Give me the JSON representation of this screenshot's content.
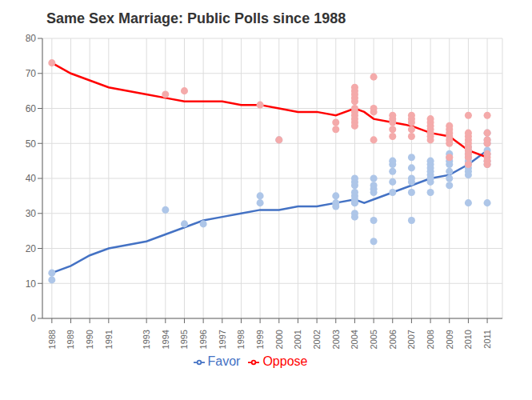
{
  "chart_data": {
    "type": "line",
    "title": "Same Sex Marriage: Public Polls since 1988",
    "xlim": [
      1987.5,
      2011.8
    ],
    "ylim": [
      0,
      80
    ],
    "xticks": [
      1988,
      1989,
      1990,
      1991,
      1993,
      1994,
      1995,
      1996,
      1997,
      1998,
      1999,
      2000,
      2001,
      2002,
      2003,
      2004,
      2005,
      2006,
      2007,
      2008,
      2009,
      2010,
      2011
    ],
    "yticks": [
      0,
      10,
      20,
      30,
      40,
      50,
      60,
      70,
      80
    ],
    "grid": true,
    "legend": "bottom",
    "series": [
      {
        "type": "scatter",
        "color": "#AEC6E8",
        "x": [
          1988,
          1988,
          1994,
          1995,
          1996,
          1999,
          1999,
          2000,
          2003,
          2003,
          2003,
          2004,
          2004,
          2004,
          2004,
          2004,
          2004,
          2004,
          2004,
          2004,
          2004,
          2005,
          2005,
          2005,
          2005,
          2005,
          2005,
          2006,
          2006,
          2006,
          2006,
          2006,
          2007,
          2007,
          2007,
          2007,
          2007,
          2007,
          2008,
          2008,
          2008,
          2008,
          2008,
          2008,
          2008,
          2008,
          2009,
          2009,
          2009,
          2009,
          2009,
          2009,
          2009,
          2010,
          2010,
          2010,
          2010,
          2010,
          2010,
          2010,
          2010,
          2010,
          2010,
          2011,
          2011,
          2011,
          2011,
          2011,
          2011,
          2011,
          2011
        ],
        "values": [
          11,
          13,
          31,
          27,
          27,
          35,
          33,
          51,
          32,
          33,
          35,
          29,
          30,
          33,
          33,
          34,
          35,
          36,
          38,
          39,
          40,
          22,
          28,
          36,
          37,
          38,
          40,
          36,
          39,
          42,
          44,
          45,
          28,
          36,
          39,
          40,
          43,
          46,
          36,
          39,
          40,
          41,
          42,
          43,
          44,
          45,
          38,
          40,
          42,
          44,
          45,
          46,
          47,
          33,
          41,
          42,
          43,
          44,
          45,
          46,
          47,
          48,
          49,
          33,
          44,
          45,
          47,
          48,
          50,
          51,
          53
        ]
      },
      {
        "type": "scatter",
        "color": "#F4AAAA",
        "x": [
          1988,
          1994,
          1995,
          1999,
          2000,
          2003,
          2003,
          2004,
          2004,
          2004,
          2004,
          2004,
          2004,
          2004,
          2004,
          2004,
          2004,
          2004,
          2005,
          2005,
          2005,
          2005,
          2006,
          2006,
          2006,
          2006,
          2006,
          2007,
          2007,
          2007,
          2007,
          2007,
          2008,
          2008,
          2008,
          2008,
          2008,
          2008,
          2008,
          2009,
          2009,
          2009,
          2009,
          2009,
          2009,
          2009,
          2010,
          2010,
          2010,
          2010,
          2010,
          2010,
          2010,
          2010,
          2010,
          2010,
          2011,
          2011,
          2011,
          2011,
          2011,
          2011,
          2011,
          2011
        ],
        "values": [
          73,
          64,
          65,
          61,
          51,
          54,
          56,
          55,
          56,
          57,
          58,
          59,
          60,
          62,
          63,
          64,
          65,
          66,
          51,
          59,
          60,
          69,
          52,
          54,
          56,
          57,
          58,
          52,
          54,
          56,
          57,
          58,
          51,
          52,
          53,
          54,
          55,
          56,
          57,
          46,
          50,
          51,
          52,
          53,
          54,
          55,
          44,
          46,
          47,
          48,
          49,
          50,
          51,
          52,
          53,
          58,
          44,
          45,
          46,
          47,
          50,
          51,
          53,
          58
        ]
      },
      {
        "type": "line",
        "name": "Favor",
        "color": "#4472C4",
        "x": [
          1988,
          1989,
          1990,
          1991,
          1993,
          1994,
          1995,
          1996,
          1997,
          1998,
          1999,
          2000,
          2001,
          2002,
          2003,
          2004,
          2004.5,
          2005,
          2006,
          2007,
          2008,
          2009,
          2010,
          2011
        ],
        "values": [
          13,
          15,
          18,
          20,
          22,
          24,
          26,
          28,
          29,
          30,
          31,
          31,
          32,
          32,
          33,
          34,
          33,
          34,
          36,
          38,
          40,
          41,
          44,
          48
        ]
      },
      {
        "type": "line",
        "name": "Oppose",
        "color": "#FF0000",
        "x": [
          1988,
          1989,
          1990,
          1991,
          1993,
          1994,
          1995,
          1996,
          1997,
          1998,
          1999,
          2000,
          2001,
          2002,
          2003,
          2004,
          2004.5,
          2005,
          2006,
          2007,
          2008,
          2009,
          2010,
          2011
        ],
        "values": [
          73,
          70,
          68,
          66,
          64,
          63,
          62,
          62,
          62,
          61,
          61,
          60,
          59,
          59,
          58,
          60,
          59,
          57,
          56,
          55,
          53,
          52,
          48,
          46
        ]
      }
    ]
  }
}
